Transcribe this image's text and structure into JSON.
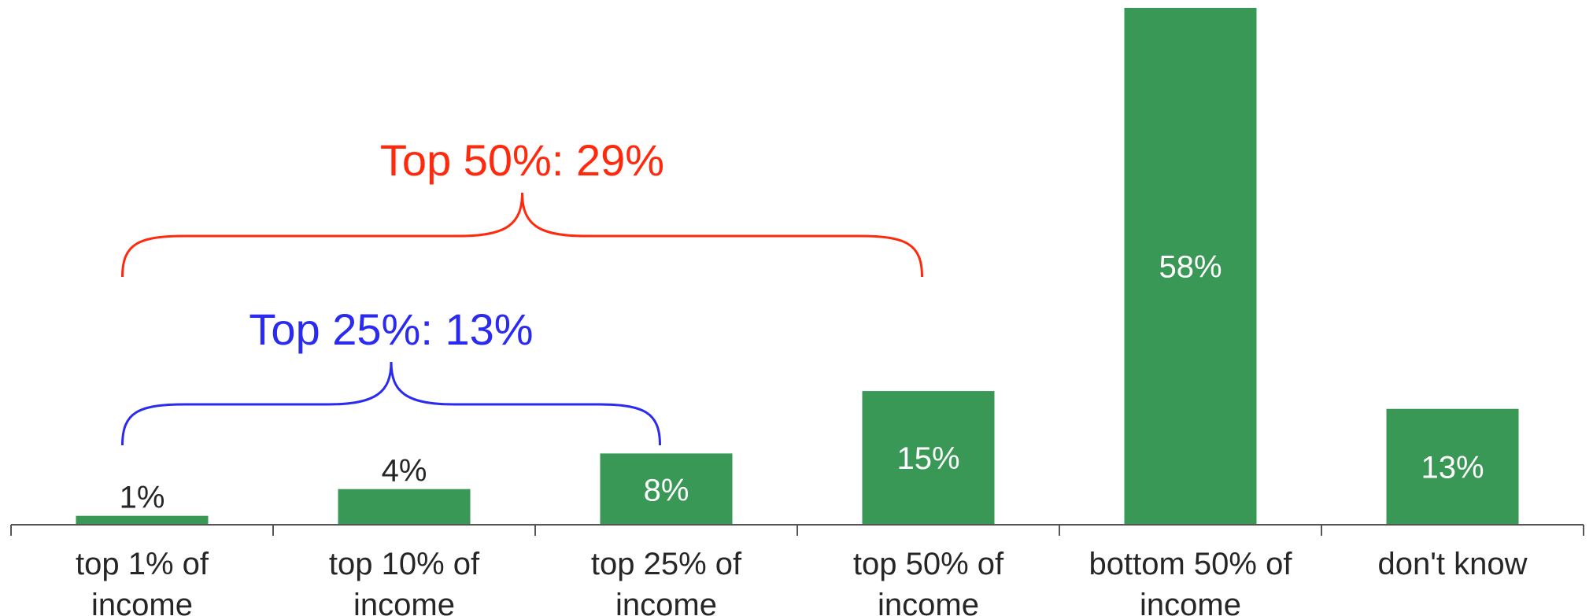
{
  "chart_data": {
    "type": "bar",
    "categories": [
      [
        "top 1% of",
        "income"
      ],
      [
        "top 10% of",
        "income"
      ],
      [
        "top 25% of",
        "income"
      ],
      [
        "top 50% of",
        "income"
      ],
      [
        "bottom 50% of",
        "income"
      ],
      [
        "don't know"
      ]
    ],
    "values": [
      1,
      4,
      8,
      15,
      58,
      13
    ],
    "data_labels": [
      "1%",
      "4%",
      "8%",
      "15%",
      "58%",
      "13%"
    ],
    "ylim": [
      0,
      58
    ],
    "grid": false,
    "legend": "none",
    "annotations": [
      {
        "text": "Top 50%: 29%",
        "span": [
          0,
          3
        ],
        "color": "#ff2a0d"
      },
      {
        "text": "Top 25%: 13%",
        "span": [
          0,
          2
        ],
        "color": "#2a2af0"
      }
    ],
    "colors": {
      "bar": "#3a9856",
      "axis": "#555555",
      "label_inside": "#ffffff",
      "label_outside": "#262626"
    }
  }
}
